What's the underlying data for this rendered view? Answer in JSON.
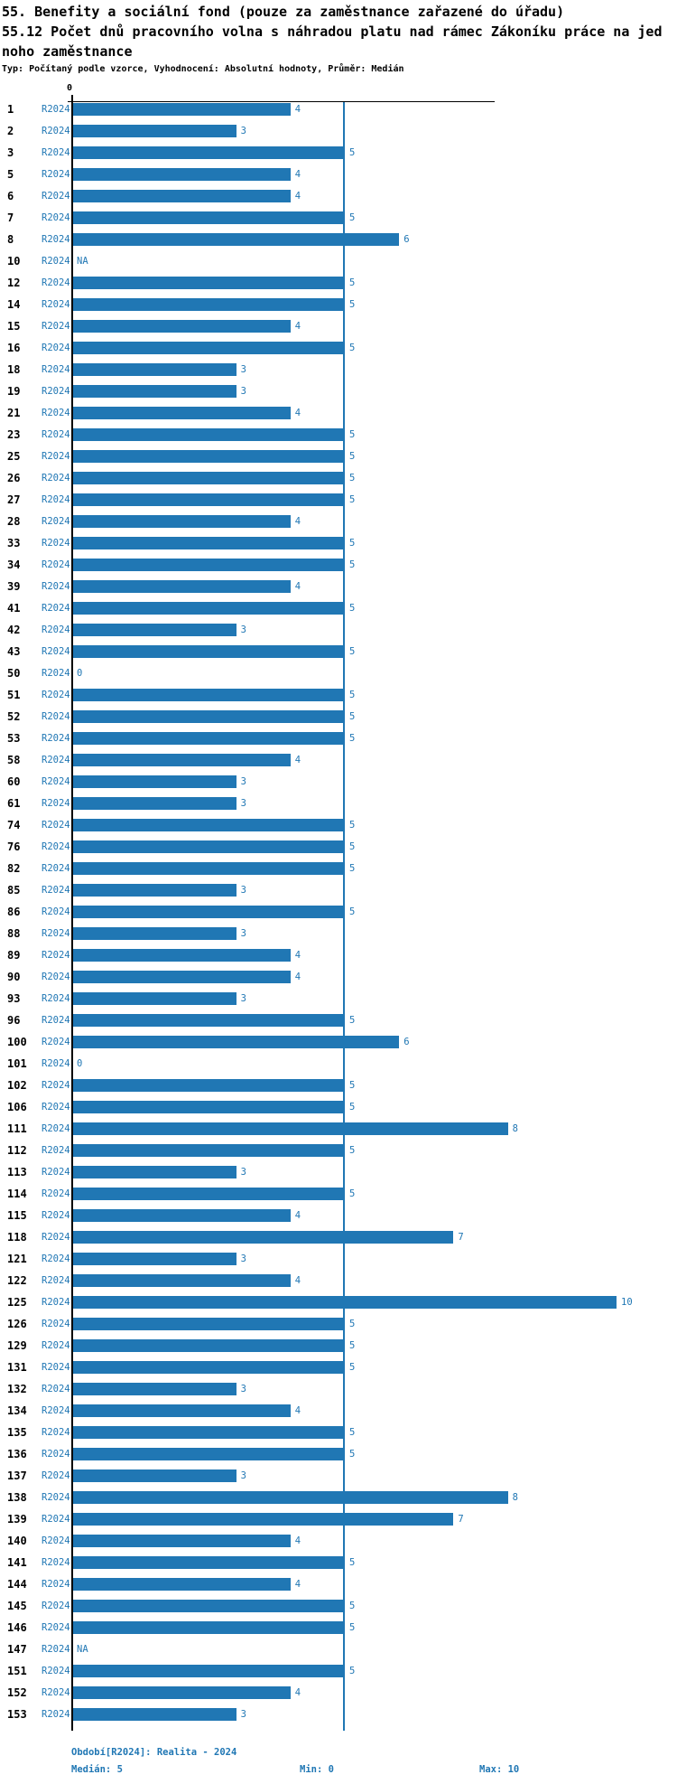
{
  "title": {
    "line1": "55. Benefity a sociální fond (pouze za zaměstnance zařazené do úřadu)",
    "line2": "55.12 Počet dnů pracovního volna s náhradou platu nad rámec Zákoníku práce na jed",
    "line3": "noho zaměstnance",
    "meta": "Typ: Počítaný podle vzorce, Vyhodnocení: Absolutní hodnoty, Průměr: Medián"
  },
  "axis": {
    "zero_label": "0"
  },
  "footer": {
    "period": "Období[R2024]: Realita - 2024",
    "median": "Medián: 5",
    "min": "Min: 0",
    "max": "Max: 10"
  },
  "colors": {
    "accent": "#2077b4",
    "axis": "#000000",
    "background": "#ffffff"
  },
  "chart_data": {
    "type": "bar",
    "orientation": "horizontal",
    "title": "55. Benefity a sociální fond (pouze za zaměstnance zařazené do úřadu)",
    "subtitle": "55.12 Počet dnů pracovního volna s náhradou platu nad rámec Zákoníku práce na jednoho zaměstnance",
    "series_label": "R2024",
    "xlim": [
      0,
      10
    ],
    "median": 5,
    "min": 0,
    "max": 10,
    "grid": false,
    "legend_position": "none",
    "rows": [
      {
        "id": "1",
        "value": 4
      },
      {
        "id": "2",
        "value": 3
      },
      {
        "id": "3",
        "value": 5
      },
      {
        "id": "5",
        "value": 4
      },
      {
        "id": "6",
        "value": 4
      },
      {
        "id": "7",
        "value": 5
      },
      {
        "id": "8",
        "value": 6
      },
      {
        "id": "10",
        "value": "NA"
      },
      {
        "id": "12",
        "value": 5
      },
      {
        "id": "14",
        "value": 5
      },
      {
        "id": "15",
        "value": 4
      },
      {
        "id": "16",
        "value": 5
      },
      {
        "id": "18",
        "value": 3
      },
      {
        "id": "19",
        "value": 3
      },
      {
        "id": "21",
        "value": 4
      },
      {
        "id": "23",
        "value": 5
      },
      {
        "id": "25",
        "value": 5
      },
      {
        "id": "26",
        "value": 5
      },
      {
        "id": "27",
        "value": 5
      },
      {
        "id": "28",
        "value": 4
      },
      {
        "id": "33",
        "value": 5
      },
      {
        "id": "34",
        "value": 5
      },
      {
        "id": "39",
        "value": 4
      },
      {
        "id": "41",
        "value": 5
      },
      {
        "id": "42",
        "value": 3
      },
      {
        "id": "43",
        "value": 5
      },
      {
        "id": "50",
        "value": 0
      },
      {
        "id": "51",
        "value": 5
      },
      {
        "id": "52",
        "value": 5
      },
      {
        "id": "53",
        "value": 5
      },
      {
        "id": "58",
        "value": 4
      },
      {
        "id": "60",
        "value": 3
      },
      {
        "id": "61",
        "value": 3
      },
      {
        "id": "74",
        "value": 5
      },
      {
        "id": "76",
        "value": 5
      },
      {
        "id": "82",
        "value": 5
      },
      {
        "id": "85",
        "value": 3
      },
      {
        "id": "86",
        "value": 5
      },
      {
        "id": "88",
        "value": 3
      },
      {
        "id": "89",
        "value": 4
      },
      {
        "id": "90",
        "value": 4
      },
      {
        "id": "93",
        "value": 3
      },
      {
        "id": "96",
        "value": 5
      },
      {
        "id": "100",
        "value": 6
      },
      {
        "id": "101",
        "value": 0
      },
      {
        "id": "102",
        "value": 5
      },
      {
        "id": "106",
        "value": 5
      },
      {
        "id": "111",
        "value": 8
      },
      {
        "id": "112",
        "value": 5
      },
      {
        "id": "113",
        "value": 3
      },
      {
        "id": "114",
        "value": 5
      },
      {
        "id": "115",
        "value": 4
      },
      {
        "id": "118",
        "value": 7
      },
      {
        "id": "121",
        "value": 3
      },
      {
        "id": "122",
        "value": 4
      },
      {
        "id": "125",
        "value": 10
      },
      {
        "id": "126",
        "value": 5
      },
      {
        "id": "129",
        "value": 5
      },
      {
        "id": "131",
        "value": 5
      },
      {
        "id": "132",
        "value": 3
      },
      {
        "id": "134",
        "value": 4
      },
      {
        "id": "135",
        "value": 5
      },
      {
        "id": "136",
        "value": 5
      },
      {
        "id": "137",
        "value": 3
      },
      {
        "id": "138",
        "value": 8
      },
      {
        "id": "139",
        "value": 7
      },
      {
        "id": "140",
        "value": 4
      },
      {
        "id": "141",
        "value": 5
      },
      {
        "id": "144",
        "value": 4
      },
      {
        "id": "145",
        "value": 5
      },
      {
        "id": "146",
        "value": 5
      },
      {
        "id": "147",
        "value": "NA"
      },
      {
        "id": "151",
        "value": 5
      },
      {
        "id": "152",
        "value": 4
      },
      {
        "id": "153",
        "value": 3
      }
    ]
  }
}
